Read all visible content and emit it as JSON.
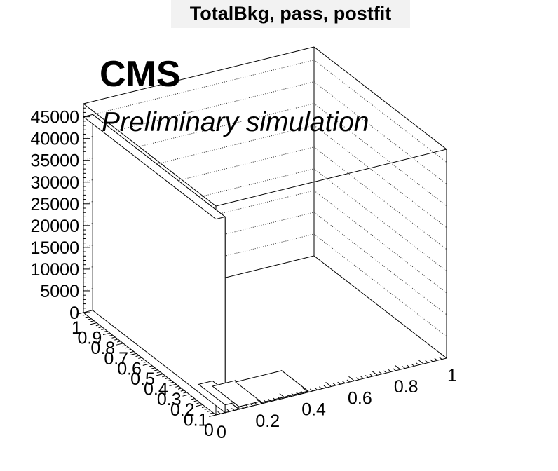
{
  "chart_data": {
    "type": "lego3d",
    "title": "TotalBkg, pass, postfit",
    "labels": {
      "experiment": "CMS",
      "status": "Preliminary simulation"
    },
    "x_axis": {
      "range": [
        0,
        1
      ],
      "ticks": [
        0,
        0.2,
        0.4,
        0.6,
        0.8,
        1
      ],
      "tick_labels": [
        "0",
        "0.2",
        "0.4",
        "0.6",
        "0.8",
        "1"
      ]
    },
    "y_axis": {
      "range": [
        0,
        1
      ],
      "ticks": [
        0,
        0.1,
        0.2,
        0.3,
        0.4,
        0.5,
        0.6,
        0.7,
        0.8,
        0.9,
        1
      ],
      "tick_labels": [
        "0",
        "0.1",
        "0.2",
        "0.3",
        "0.4",
        "0.5",
        "0.6",
        "0.7",
        "0.8",
        "0.9",
        "1"
      ]
    },
    "z_axis": {
      "range": [
        0,
        48000
      ],
      "ticks": [
        0,
        5000,
        10000,
        15000,
        20000,
        25000,
        30000,
        35000,
        40000,
        45000
      ],
      "tick_labels": [
        "0",
        "5000",
        "10000",
        "15000",
        "20000",
        "25000",
        "30000",
        "35000",
        "40000",
        "45000"
      ]
    },
    "grid": true,
    "bins": [
      {
        "x": [
          0.0,
          0.04
        ],
        "y": [
          0.0,
          1.0
        ],
        "z": 45000
      },
      {
        "x": [
          0.04,
          0.1
        ],
        "y": [
          0.0,
          0.2
        ],
        "z": 1800
      },
      {
        "x": [
          0.1,
          0.2
        ],
        "y": [
          0.0,
          0.2
        ],
        "z": 600
      },
      {
        "x": [
          0.2,
          0.4
        ],
        "y": [
          0.0,
          0.2
        ],
        "z": 250
      }
    ]
  }
}
